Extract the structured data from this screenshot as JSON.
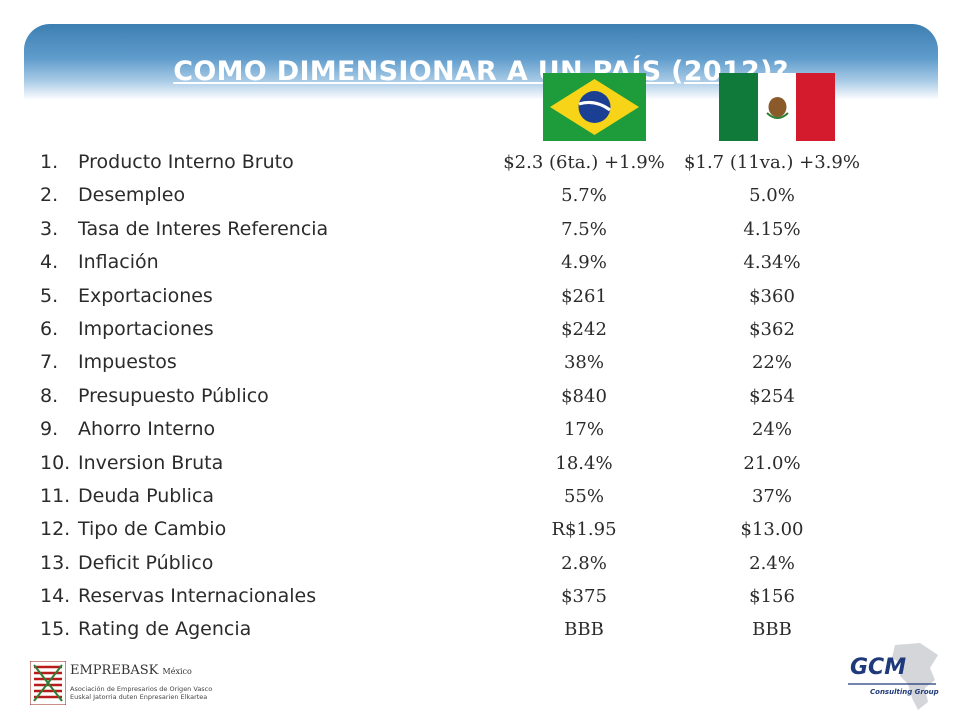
{
  "title": "COMO DIMENSIONAR A UN PAÍS (2012)?",
  "rows": [
    {
      "num": "1.",
      "label": "Producto Interno Bruto",
      "brazil": "$2.3 (6ta.) +1.9%",
      "mexico": "$1.7 (11va.) +3.9%"
    },
    {
      "num": "2.",
      "label": "Desempleo",
      "brazil": "5.7%",
      "mexico": "5.0%"
    },
    {
      "num": "3.",
      "label": "Tasa de Interes Referencia",
      "brazil": "7.5%",
      "mexico": "4.15%"
    },
    {
      "num": "4.",
      "label": "Inflación",
      "brazil": "4.9%",
      "mexico": "4.34%"
    },
    {
      "num": "5.",
      "label": "Exportaciones",
      "brazil": "$261",
      "mexico": "$360"
    },
    {
      "num": "6.",
      "label": "Importaciones",
      "brazil": "$242",
      "mexico": "$362"
    },
    {
      "num": "7.",
      "label": "Impuestos",
      "brazil": "38%",
      "mexico": "22%"
    },
    {
      "num": "8.",
      "label": "Presupuesto Público",
      "brazil": "$840",
      "mexico": "$254"
    },
    {
      "num": "9.",
      "label": "Ahorro Interno",
      "brazil": "17%",
      "mexico": "24%"
    },
    {
      "num": "10.",
      "label": "Inversion Bruta",
      "brazil": "18.4%",
      "mexico": "21.0%"
    },
    {
      "num": "11.",
      "label": "Deuda Publica",
      "brazil": "55%",
      "mexico": "37%"
    },
    {
      "num": "12.",
      "label": "Tipo de Cambio",
      "brazil": "R$1.95",
      "mexico": "$13.00"
    },
    {
      "num": "13.",
      "label": "Deficit Público",
      "brazil": "2.8%",
      "mexico": "2.4%"
    },
    {
      "num": "14.",
      "label": "Reservas Internacionales",
      "brazil": "$375",
      "mexico": "$156"
    },
    {
      "num": "15.",
      "label": "Rating de Agencia",
      "brazil": "BBB",
      "mexico": "BBB"
    }
  ],
  "logos": {
    "left": {
      "name": "EMPREBASK",
      "suffix": "México",
      "line1": "Asociación de Empresarios de Origen Vasco",
      "line2": "Euskal Jatorria duten Enpresarien Elkartea"
    },
    "right": {
      "name": "GCM",
      "sub": "Consulting Group"
    }
  },
  "colors": {
    "title_bar": "#3d7fb2",
    "brazil_green": "#1e9b3a",
    "mexico_green": "#0f7a3a",
    "mexico_red": "#d41a2d"
  }
}
